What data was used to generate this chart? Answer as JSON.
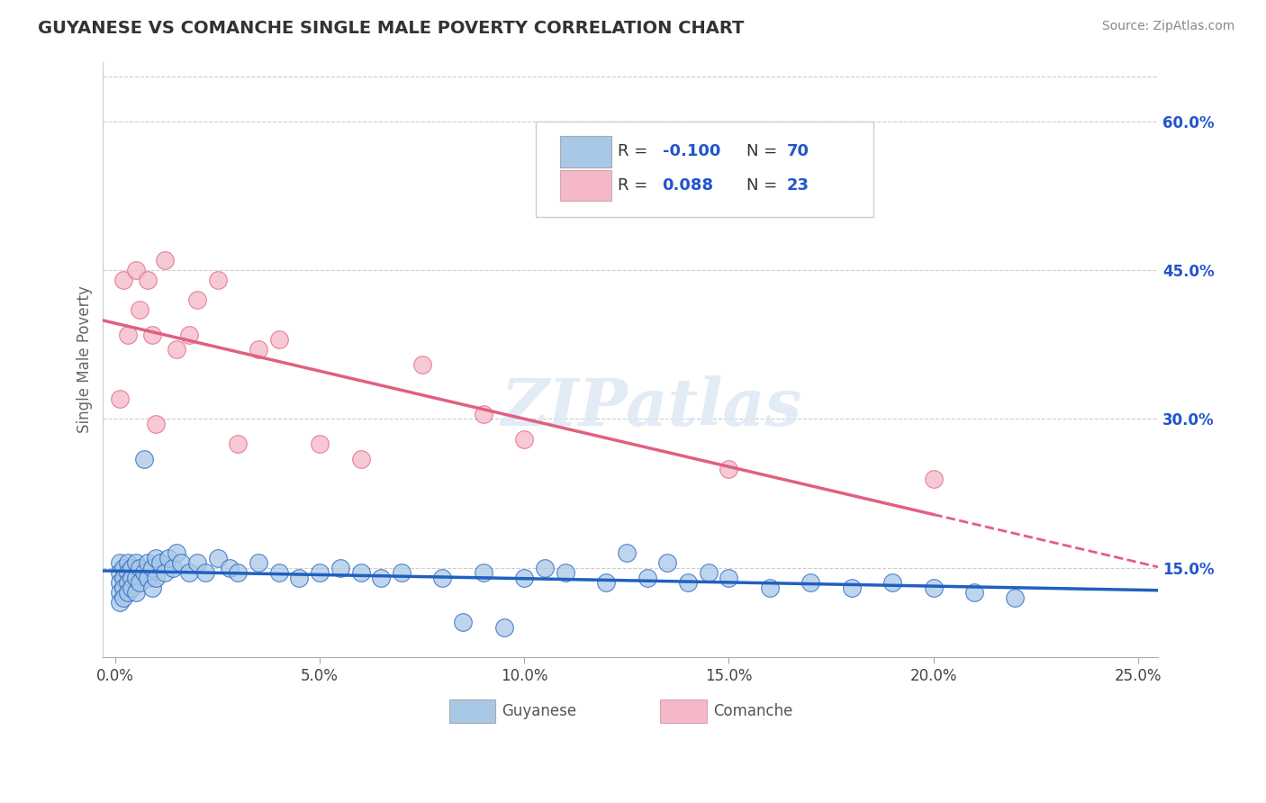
{
  "title": "GUYANESE VS COMANCHE SINGLE MALE POVERTY CORRELATION CHART",
  "source": "Source: ZipAtlas.com",
  "ylabel": "Single Male Poverty",
  "xlim": [
    -0.003,
    0.255
  ],
  "ylim": [
    0.06,
    0.66
  ],
  "xticks": [
    0.0,
    0.05,
    0.1,
    0.15,
    0.2,
    0.25
  ],
  "xtick_labels": [
    "0.0%",
    "5.0%",
    "10.0%",
    "15.0%",
    "20.0%",
    "25.0%"
  ],
  "yticks_right": [
    0.15,
    0.3,
    0.45,
    0.6
  ],
  "ytick_labels_right": [
    "15.0%",
    "30.0%",
    "45.0%",
    "60.0%"
  ],
  "guyanese_color": "#a8c8e8",
  "comanche_color": "#f4b8c8",
  "guyanese_line_color": "#2060c0",
  "comanche_line_color": "#e06080",
  "legend_R_color": "#2255cc",
  "watermark": "ZIPatlas",
  "guyanese_x": [
    0.001,
    0.001,
    0.001,
    0.001,
    0.001,
    0.002,
    0.002,
    0.002,
    0.002,
    0.003,
    0.003,
    0.003,
    0.003,
    0.004,
    0.004,
    0.004,
    0.005,
    0.005,
    0.005,
    0.006,
    0.006,
    0.007,
    0.007,
    0.008,
    0.008,
    0.009,
    0.009,
    0.01,
    0.01,
    0.011,
    0.012,
    0.013,
    0.014,
    0.015,
    0.016,
    0.018,
    0.02,
    0.022,
    0.025,
    0.028,
    0.03,
    0.035,
    0.04,
    0.045,
    0.05,
    0.055,
    0.06,
    0.065,
    0.07,
    0.08,
    0.09,
    0.1,
    0.11,
    0.12,
    0.13,
    0.14,
    0.15,
    0.16,
    0.17,
    0.18,
    0.19,
    0.2,
    0.21,
    0.22,
    0.125,
    0.135,
    0.145,
    0.105,
    0.095,
    0.085
  ],
  "guyanese_y": [
    0.155,
    0.145,
    0.135,
    0.125,
    0.115,
    0.15,
    0.14,
    0.13,
    0.12,
    0.155,
    0.145,
    0.135,
    0.125,
    0.15,
    0.14,
    0.13,
    0.155,
    0.14,
    0.125,
    0.15,
    0.135,
    0.26,
    0.145,
    0.155,
    0.14,
    0.15,
    0.13,
    0.16,
    0.14,
    0.155,
    0.145,
    0.16,
    0.15,
    0.165,
    0.155,
    0.145,
    0.155,
    0.145,
    0.16,
    0.15,
    0.145,
    0.155,
    0.145,
    0.14,
    0.145,
    0.15,
    0.145,
    0.14,
    0.145,
    0.14,
    0.145,
    0.14,
    0.145,
    0.135,
    0.14,
    0.135,
    0.14,
    0.13,
    0.135,
    0.13,
    0.135,
    0.13,
    0.125,
    0.12,
    0.165,
    0.155,
    0.145,
    0.15,
    0.09,
    0.095
  ],
  "comanche_x": [
    0.001,
    0.002,
    0.003,
    0.005,
    0.006,
    0.008,
    0.009,
    0.01,
    0.012,
    0.015,
    0.018,
    0.02,
    0.025,
    0.03,
    0.035,
    0.04,
    0.05,
    0.06,
    0.075,
    0.09,
    0.1,
    0.15,
    0.2
  ],
  "comanche_y": [
    0.32,
    0.44,
    0.385,
    0.45,
    0.41,
    0.44,
    0.385,
    0.295,
    0.46,
    0.37,
    0.385,
    0.42,
    0.44,
    0.275,
    0.37,
    0.38,
    0.275,
    0.26,
    0.355,
    0.305,
    0.28,
    0.25,
    0.24
  ]
}
